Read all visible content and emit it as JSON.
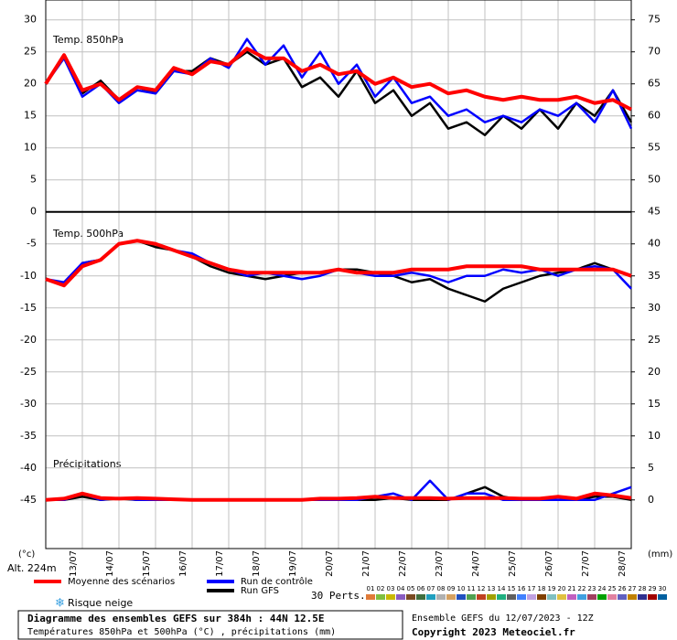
{
  "chart_data": {
    "type": "line",
    "panels": [
      "Temp. 850hPa",
      "Temp. 500hPa",
      "Précipitations"
    ],
    "y_unit": "(°c)",
    "y2_unit": "(mm)",
    "altitude": "Alt. 224m",
    "x": [
      0,
      12,
      24,
      36,
      48,
      60,
      72,
      84,
      96,
      108,
      120,
      132,
      144,
      156,
      168,
      180,
      192,
      204,
      216,
      228,
      240,
      252,
      264,
      276,
      288,
      300,
      312,
      324,
      336,
      348,
      360,
      372,
      384
    ],
    "xlim": [
      0,
      384
    ],
    "xticks": [
      {
        "value": 24,
        "label": "13/07"
      },
      {
        "value": 48,
        "label": "14/07"
      },
      {
        "value": 72,
        "label": "15/07"
      },
      {
        "value": 96,
        "label": "16/07"
      },
      {
        "value": 120,
        "label": "17/07"
      },
      {
        "value": 144,
        "label": "18/07"
      },
      {
        "value": 168,
        "label": "19/07"
      },
      {
        "value": 192,
        "label": "20/07"
      },
      {
        "value": 216,
        "label": "21/07"
      },
      {
        "value": 240,
        "label": "22/07"
      },
      {
        "value": 264,
        "label": "23/07"
      },
      {
        "value": 288,
        "label": "24/07"
      },
      {
        "value": 312,
        "label": "25/07"
      },
      {
        "value": 336,
        "label": "26/07"
      },
      {
        "value": 360,
        "label": "27/07"
      },
      {
        "value": 384,
        "label": "28/07"
      }
    ],
    "ylim": [
      -52.6,
      33.1
    ],
    "yticks": [
      30,
      25,
      20,
      15,
      10,
      5,
      0,
      -5,
      -10,
      -15,
      -20,
      -25,
      -30,
      -35,
      -40,
      -45
    ],
    "y2lim": [
      -7.6,
      78.1
    ],
    "y2ticks": [
      75,
      70,
      65,
      60,
      55,
      50,
      45,
      40,
      35,
      30,
      25,
      20,
      15,
      10,
      5,
      0
    ],
    "grid": true,
    "legend": [
      {
        "name": "Moyenne des scénarios",
        "color": "#ff0000"
      },
      {
        "name": "Run de contrôle",
        "color": "#0000ff"
      },
      {
        "name": "Run GFS",
        "color": "#000000"
      }
    ],
    "perts_label": "30 Perts.",
    "perts": [
      {
        "name": "01",
        "color": "#e07b39"
      },
      {
        "name": "02",
        "color": "#7fbf3f"
      },
      {
        "name": "03",
        "color": "#c9b800"
      },
      {
        "name": "04",
        "color": "#8a5cc0"
      },
      {
        "name": "05",
        "color": "#7a4b22"
      },
      {
        "name": "06",
        "color": "#3f6f3f"
      },
      {
        "name": "07",
        "color": "#1f9fbf"
      },
      {
        "name": "08",
        "color": "#b0b0b0"
      },
      {
        "name": "09",
        "color": "#d4a060"
      },
      {
        "name": "10",
        "color": "#2050c0"
      },
      {
        "name": "11",
        "color": "#50a050"
      },
      {
        "name": "12",
        "color": "#c04020"
      },
      {
        "name": "13",
        "color": "#a0a000"
      },
      {
        "name": "14",
        "color": "#20b080"
      },
      {
        "name": "15",
        "color": "#606060"
      },
      {
        "name": "16",
        "color": "#4080ff"
      },
      {
        "name": "17",
        "color": "#c0a0e0"
      },
      {
        "name": "18",
        "color": "#804000"
      },
      {
        "name": "19",
        "color": "#80c0c0"
      },
      {
        "name": "20",
        "color": "#e0c040"
      },
      {
        "name": "21",
        "color": "#c060c0"
      },
      {
        "name": "22",
        "color": "#40a0e0"
      },
      {
        "name": "23",
        "color": "#a04060"
      },
      {
        "name": "24",
        "color": "#00a000"
      },
      {
        "name": "25",
        "color": "#e080a0"
      },
      {
        "name": "26",
        "color": "#6060c0"
      },
      {
        "name": "27",
        "color": "#c08000"
      },
      {
        "name": "28",
        "color": "#303090"
      },
      {
        "name": "29",
        "color": "#a00000"
      },
      {
        "name": "30",
        "color": "#0060a0"
      }
    ],
    "snow_label": "Risque neige",
    "series": [
      {
        "legend": 0,
        "panel": 0,
        "axis": "y",
        "values": [
          20,
          24.5,
          19,
          20,
          17.5,
          19.5,
          19,
          22.5,
          21.5,
          23.5,
          23,
          25.5,
          24,
          24,
          22,
          23,
          21.5,
          22,
          20,
          21,
          19.5,
          20,
          18.5,
          19,
          18,
          17.5,
          18,
          17.5,
          17.5,
          18,
          17,
          17.5,
          16
        ]
      },
      {
        "legend": 1,
        "panel": 0,
        "axis": "y",
        "values": [
          20,
          24,
          18,
          20,
          17,
          19,
          18.5,
          22,
          21.5,
          24,
          22.5,
          27,
          23,
          26,
          21,
          25,
          20,
          23,
          18,
          21,
          17,
          18,
          15,
          16,
          14,
          15,
          14,
          16,
          15,
          17,
          14,
          19,
          13
        ]
      },
      {
        "legend": 2,
        "panel": 0,
        "axis": "y",
        "values": [
          20,
          24.5,
          18.5,
          20.5,
          17.5,
          19.5,
          18.5,
          22,
          22,
          24,
          23,
          25,
          23,
          24,
          19.5,
          21,
          18,
          22,
          17,
          19,
          15,
          17,
          13,
          14,
          12,
          15,
          13,
          16,
          13,
          17,
          15,
          19,
          14
        ]
      },
      {
        "legend": 0,
        "panel": 1,
        "axis": "y",
        "values": [
          -10.5,
          -11.5,
          -8.5,
          -7.5,
          -5,
          -4.5,
          -5,
          -6,
          -7,
          -8,
          -9,
          -9.5,
          -9.5,
          -9.5,
          -9.5,
          -9.5,
          -9,
          -9.5,
          -9.5,
          -9.5,
          -9,
          -9,
          -9,
          -8.5,
          -8.5,
          -8.5,
          -8.5,
          -9,
          -9,
          -9,
          -9,
          -9,
          -10
        ]
      },
      {
        "legend": 1,
        "panel": 1,
        "axis": "y",
        "values": [
          -10.5,
          -11,
          -8,
          -7.5,
          -5,
          -4.5,
          -5,
          -6,
          -6.5,
          -8,
          -9,
          -10,
          -9.5,
          -10,
          -10.5,
          -10,
          -9,
          -9.5,
          -10,
          -10,
          -9.5,
          -10,
          -11,
          -10,
          -10,
          -9,
          -9.5,
          -9,
          -10,
          -9,
          -8.5,
          -9,
          -12
        ]
      },
      {
        "legend": 2,
        "panel": 1,
        "axis": "y",
        "values": [
          -10.5,
          -11.5,
          -8,
          -7.5,
          -5,
          -4.5,
          -5.5,
          -6,
          -7,
          -8.5,
          -9.5,
          -10,
          -10.5,
          -10,
          -9.5,
          -9.5,
          -9,
          -9,
          -9.5,
          -10,
          -11,
          -10.5,
          -12,
          -13,
          -14,
          -12,
          -11,
          -10,
          -9.5,
          -9,
          -8,
          -9,
          -10
        ]
      },
      {
        "legend": 0,
        "panel": 2,
        "axis": "y2",
        "values": [
          0,
          0.2,
          1,
          0.3,
          0.2,
          0.3,
          0.2,
          0.1,
          0,
          0,
          0,
          0,
          0,
          0,
          0,
          0.2,
          0.2,
          0.3,
          0.5,
          0.3,
          0.3,
          0.3,
          0.2,
          0.3,
          0.3,
          0.3,
          0.2,
          0.2,
          0.5,
          0.2,
          1,
          0.7,
          0.3
        ]
      },
      {
        "legend": 1,
        "panel": 2,
        "axis": "y2",
        "values": [
          0,
          0,
          1,
          0,
          0.3,
          0,
          0,
          0,
          0,
          0,
          0,
          0,
          0,
          0,
          0,
          0,
          0,
          0,
          0.5,
          1,
          0,
          3,
          0,
          1,
          1,
          0,
          0,
          0,
          0,
          0,
          0,
          1,
          2
        ]
      },
      {
        "legend": 2,
        "panel": 2,
        "axis": "y2",
        "values": [
          0,
          0,
          0.5,
          0,
          0.2,
          0,
          0,
          0,
          0,
          0,
          0,
          0,
          0,
          0,
          0,
          0,
          0,
          0,
          0,
          0.3,
          0,
          0,
          0,
          1,
          2,
          0.5,
          0,
          0,
          0,
          0,
          0.5,
          0.5,
          0
        ]
      }
    ]
  },
  "footer": {
    "title": "Diagramme des ensembles GEFS sur 384h : 44N 12.5E",
    "subtitle": "Températures 850hPa et 500hPa (°C) , précipitations (mm)",
    "run": "Ensemble GEFS du 12/07/2023 - 12Z",
    "copyright": "Copyright 2023 Meteociel.fr"
  }
}
